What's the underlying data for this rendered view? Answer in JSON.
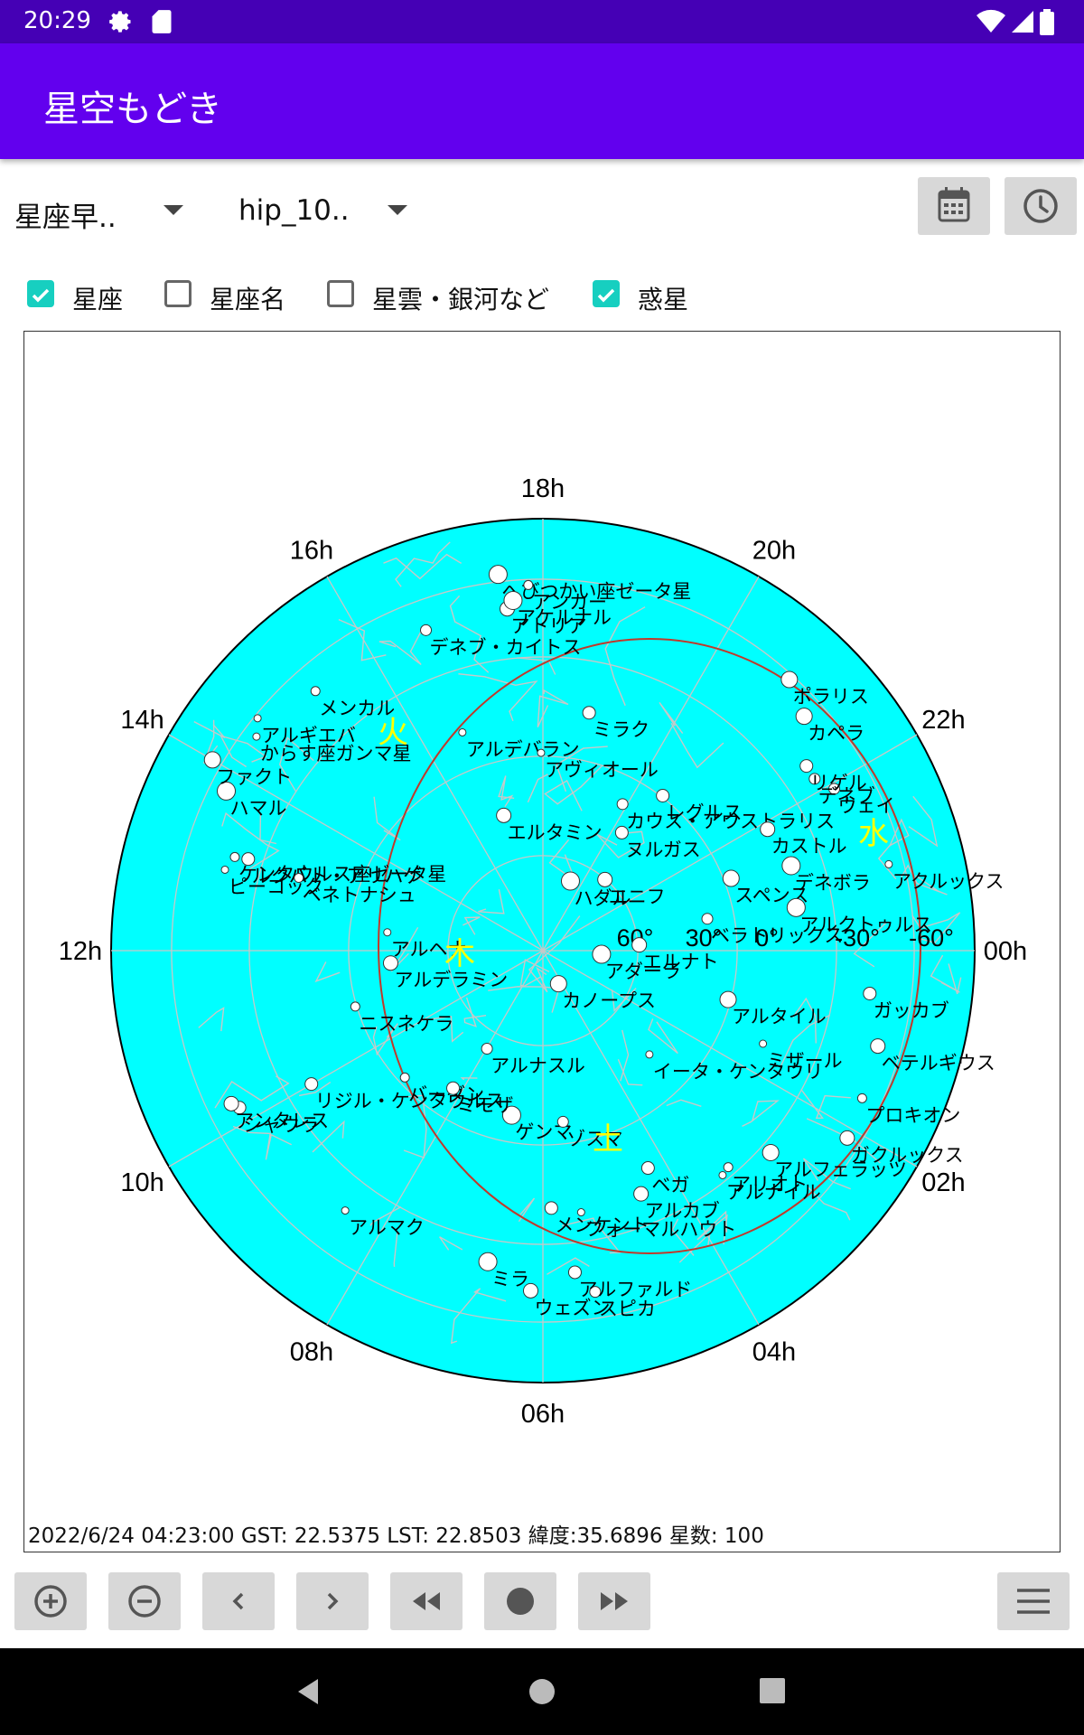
{
  "status": {
    "time": "20:29"
  },
  "app": {
    "title": "星空もどき"
  },
  "controls": {
    "spinner1": "星座早..",
    "spinner2": "hip_10..",
    "checks": [
      {
        "label": "星座",
        "checked": true
      },
      {
        "label": "星座名",
        "checked": false
      },
      {
        "label": "星雲・銀河など",
        "checked": false
      },
      {
        "label": "惑星",
        "checked": true
      }
    ]
  },
  "map": {
    "colors": {
      "sky": "#00ffff",
      "lines": "#c8c8c8",
      "ecliptic": "#c0392b",
      "planet": "#ffff00"
    },
    "hour_labels": [
      "18h",
      "20h",
      "22h",
      "00h",
      "02h",
      "04h",
      "06h",
      "08h",
      "10h",
      "12h",
      "14h",
      "16h"
    ],
    "dec_labels": [
      "60°",
      "30°",
      "0°",
      "-30°",
      "-60°"
    ],
    "star_names": [
      "アトリア",
      "ヌルガス",
      "シャウラ",
      "カウス・アウストラリス",
      "ピーコック",
      "ウェイ",
      "アンタレス",
      "ニスネケラ",
      "リジル・ケンタウルス",
      "へびつかい座ゼータ星",
      "ハダル",
      "イータ・ケンタウリ",
      "ガッカブ",
      "スペンス",
      "アルナスル",
      "ルクバト・アリハゲ",
      "アルタイル",
      "メンケント",
      "ケンタウルス座ゼータ星",
      "バーダン",
      "アルナイル",
      "ゲンマ",
      "ベガ",
      "ミラ",
      "アルクトゥルス",
      "エルタミン",
      "エニフ",
      "デネブ",
      "フォーマルハウト",
      "スピカ",
      "ミモザ",
      "アクルックス",
      "ベネトナシュ",
      "アルデラミン",
      "アルカブ",
      "ガクルックス",
      "からす座ガンマ星",
      "アリオト",
      "アルフェラッツ",
      "デネボラ",
      "ミザール",
      "ポラリス",
      "ミラク",
      "ゾスマ",
      "アルギエバ",
      "アルマク",
      "レグルス",
      "ハマル",
      "カペラ",
      "アルファルド",
      "カストル",
      "エルナト",
      "メンカル",
      "プロキオン",
      "アルヘナ",
      "アルデバラン",
      "ベテルギウス",
      "ベラトリックス",
      "リゲル",
      "ウェズン",
      "ファクト",
      "アダーラ",
      "アヴィオール",
      "カノープス",
      "デネブ・カイトス",
      "アンカー",
      "アケルナル"
    ],
    "planets": [
      {
        "name": "火",
        "label": "fire"
      },
      {
        "name": "木",
        "label": "jupiter"
      },
      {
        "name": "水",
        "label": "mercury"
      },
      {
        "name": "土",
        "label": "saturn"
      }
    ]
  },
  "info": "2022/6/24 04:23:00 GST: 22.5375 LST: 22.8503 緯度:35.6896 星数: 100"
}
